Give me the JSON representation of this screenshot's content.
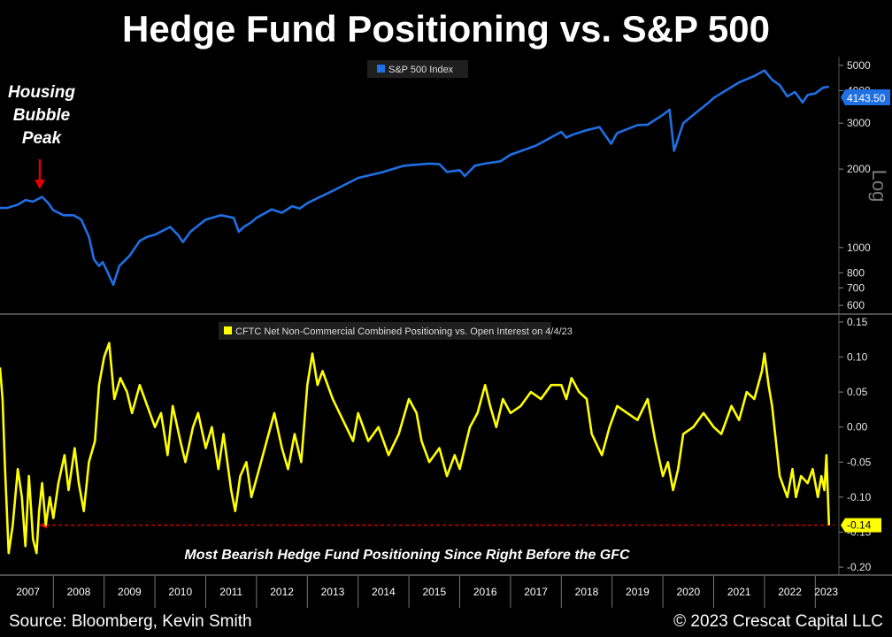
{
  "title": "Hedge Fund Positioning vs. S&P 500",
  "footer": {
    "source": "Source: Bloomberg, Kevin Smith",
    "copyright": "© 2023 Crescat Capital LLC"
  },
  "colors": {
    "background": "#000000",
    "sp500_line": "#1f6fe5",
    "positioning_line": "#ffff00",
    "annotation_arrow": "#e00000",
    "dashed_line": "#e00000",
    "panel_border": "#555555"
  },
  "chart_data": [
    {
      "type": "line",
      "panel": "top",
      "legend": "S&P 500 Index",
      "legend_placement": "top-center",
      "y_axis_label": "Log",
      "y_scale": "log",
      "ylim": [
        560,
        5400
      ],
      "y_ticks": [
        5000,
        4000,
        3000,
        2000,
        1000,
        800,
        700,
        600
      ],
      "y_tick_labels": [
        "5000",
        "4000",
        "3000",
        "2000",
        "1000",
        "800",
        "700",
        "600"
      ],
      "last_value_label": "4143.50",
      "grid": false,
      "annotation": {
        "text_lines": [
          "Housing",
          "Bubble",
          "Peak"
        ],
        "x": 2007.8
      },
      "series": [
        {
          "name": "S&P 500 Index",
          "x": [
            2006.95,
            2007.1,
            2007.3,
            2007.45,
            2007.6,
            2007.78,
            2007.9,
            2008.0,
            2008.2,
            2008.4,
            2008.55,
            2008.7,
            2008.8,
            2008.9,
            2008.97,
            2009.05,
            2009.18,
            2009.3,
            2009.5,
            2009.7,
            2009.85,
            2010.0,
            2010.3,
            2010.45,
            2010.55,
            2010.7,
            2011.0,
            2011.3,
            2011.55,
            2011.65,
            2011.75,
            2011.9,
            2012.0,
            2012.3,
            2012.5,
            2012.7,
            2012.85,
            2013.0,
            2013.5,
            2014.0,
            2014.5,
            2014.9,
            2015.4,
            2015.6,
            2015.75,
            2016.0,
            2016.1,
            2016.3,
            2016.5,
            2016.8,
            2017.0,
            2017.5,
            2018.0,
            2018.1,
            2018.2,
            2018.5,
            2018.75,
            2018.98,
            2019.1,
            2019.5,
            2019.7,
            2020.0,
            2020.13,
            2020.22,
            2020.4,
            2020.7,
            2020.9,
            2021.0,
            2021.5,
            2021.8,
            2022.0,
            2022.15,
            2022.3,
            2022.45,
            2022.6,
            2022.75,
            2022.85,
            2023.0,
            2023.15,
            2023.27
          ],
          "values": [
            1418,
            1420,
            1460,
            1520,
            1500,
            1565,
            1480,
            1390,
            1330,
            1330,
            1280,
            1100,
            900,
            850,
            880,
            820,
            720,
            850,
            930,
            1060,
            1100,
            1120,
            1200,
            1120,
            1050,
            1150,
            1280,
            1330,
            1300,
            1150,
            1200,
            1250,
            1300,
            1400,
            1360,
            1440,
            1410,
            1480,
            1650,
            1850,
            1950,
            2060,
            2100,
            2090,
            1950,
            1980,
            1880,
            2060,
            2100,
            2140,
            2270,
            2460,
            2780,
            2640,
            2700,
            2820,
            2900,
            2500,
            2750,
            2950,
            2960,
            3230,
            3380,
            2350,
            3000,
            3350,
            3600,
            3750,
            4300,
            4550,
            4780,
            4400,
            4200,
            3800,
            3950,
            3600,
            3850,
            3900,
            4100,
            4143.5
          ]
        }
      ]
    },
    {
      "type": "line",
      "panel": "bottom",
      "legend": "CFTC Net Non-Commercial Combined Positioning vs. Open Interest on 4/4/23",
      "legend_placement": "top-center",
      "ylim": [
        -0.21,
        0.16
      ],
      "y_ticks": [
        0.15,
        0.1,
        0.05,
        0.0,
        -0.05,
        -0.1,
        -0.15,
        -0.2
      ],
      "y_tick_labels": [
        "0.15",
        "0.10",
        "0.05",
        "0.00",
        "-0.05",
        "-0.10",
        "-0.15",
        "-0.20"
      ],
      "last_value_label": "-0.14",
      "reference_line": {
        "y": -0.14,
        "style": "dashed"
      },
      "annotation": "Most Bearish Hedge Fund Positioning Since Right Before the GFC",
      "grid": false,
      "series": [
        {
          "name": "CFTC Net Non-Commercial Combined Positioning vs. Open Interest",
          "x": [
            2006.95,
            2007.0,
            2007.05,
            2007.12,
            2007.2,
            2007.3,
            2007.38,
            2007.45,
            2007.52,
            2007.6,
            2007.67,
            2007.72,
            2007.78,
            2007.85,
            2007.93,
            2008.0,
            2008.1,
            2008.22,
            2008.3,
            2008.42,
            2008.5,
            2008.6,
            2008.7,
            2008.82,
            2008.9,
            2009.0,
            2009.1,
            2009.2,
            2009.32,
            2009.45,
            2009.55,
            2009.7,
            2009.85,
            2010.0,
            2010.12,
            2010.25,
            2010.35,
            2010.5,
            2010.6,
            2010.75,
            2010.85,
            2011.0,
            2011.12,
            2011.25,
            2011.35,
            2011.5,
            2011.58,
            2011.68,
            2011.8,
            2011.9,
            2012.05,
            2012.2,
            2012.35,
            2012.5,
            2012.62,
            2012.75,
            2012.88,
            2013.0,
            2013.1,
            2013.2,
            2013.3,
            2013.5,
            2013.7,
            2013.9,
            2014.0,
            2014.2,
            2014.4,
            2014.6,
            2014.8,
            2015.0,
            2015.15,
            2015.25,
            2015.4,
            2015.6,
            2015.75,
            2015.9,
            2016.0,
            2016.1,
            2016.2,
            2016.35,
            2016.5,
            2016.6,
            2016.72,
            2016.85,
            2017.0,
            2017.2,
            2017.4,
            2017.6,
            2017.8,
            2018.0,
            2018.1,
            2018.2,
            2018.35,
            2018.5,
            2018.6,
            2018.8,
            2018.95,
            2019.1,
            2019.3,
            2019.5,
            2019.7,
            2019.85,
            2020.0,
            2020.1,
            2020.2,
            2020.3,
            2020.4,
            2020.6,
            2020.8,
            2021.0,
            2021.15,
            2021.35,
            2021.5,
            2021.65,
            2021.8,
            2021.95,
            2022.0,
            2022.08,
            2022.15,
            2022.3,
            2022.45,
            2022.55,
            2022.62,
            2022.72,
            2022.85,
            2022.95,
            2023.05,
            2023.12,
            2023.18,
            2023.22,
            2023.27
          ],
          "values": [
            0.085,
            0.04,
            -0.06,
            -0.18,
            -0.14,
            -0.06,
            -0.1,
            -0.17,
            -0.07,
            -0.16,
            -0.18,
            -0.12,
            -0.08,
            -0.14,
            -0.1,
            -0.13,
            -0.08,
            -0.04,
            -0.09,
            -0.03,
            -0.08,
            -0.12,
            -0.05,
            -0.02,
            0.06,
            0.1,
            0.12,
            0.04,
            0.07,
            0.05,
            0.02,
            0.06,
            0.03,
            0.0,
            0.02,
            -0.04,
            0.03,
            -0.02,
            -0.05,
            0.0,
            0.02,
            -0.03,
            0.0,
            -0.06,
            -0.01,
            -0.09,
            -0.12,
            -0.07,
            -0.05,
            -0.1,
            -0.06,
            -0.02,
            0.02,
            -0.03,
            -0.06,
            -0.01,
            -0.05,
            0.06,
            0.105,
            0.06,
            0.08,
            0.04,
            0.01,
            -0.02,
            0.02,
            -0.02,
            0.0,
            -0.04,
            -0.01,
            0.04,
            0.02,
            -0.02,
            -0.05,
            -0.03,
            -0.07,
            -0.04,
            -0.06,
            -0.03,
            0.0,
            0.02,
            0.06,
            0.03,
            0.0,
            0.04,
            0.02,
            0.03,
            0.05,
            0.04,
            0.06,
            0.06,
            0.04,
            0.07,
            0.05,
            0.04,
            -0.01,
            -0.04,
            0.0,
            0.03,
            0.02,
            0.01,
            0.04,
            -0.02,
            -0.07,
            -0.05,
            -0.09,
            -0.06,
            -0.01,
            0.0,
            0.02,
            0.0,
            -0.01,
            0.03,
            0.01,
            0.05,
            0.04,
            0.08,
            0.105,
            0.06,
            0.03,
            -0.07,
            -0.1,
            -0.06,
            -0.1,
            -0.07,
            -0.08,
            -0.06,
            -0.1,
            -0.07,
            -0.09,
            -0.04,
            -0.14
          ]
        }
      ]
    }
  ],
  "x_axis": {
    "year_labels": [
      "2007",
      "2008",
      "2009",
      "2010",
      "2011",
      "2012",
      "2013",
      "2014",
      "2015",
      "2016",
      "2017",
      "2018",
      "2019",
      "2020",
      "2021",
      "2022",
      "2023"
    ]
  }
}
